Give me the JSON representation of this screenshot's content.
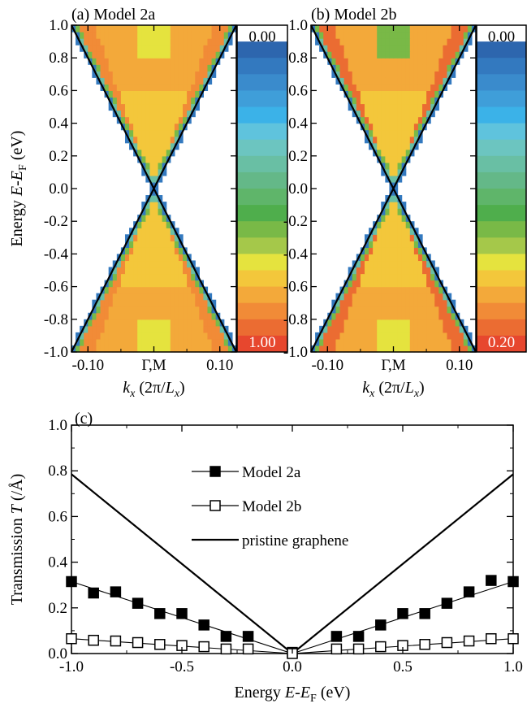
{
  "chart_data": [
    {
      "id": "panel-a",
      "type": "heatmap",
      "panel_label": "(a) Model 2a",
      "xlabel_main": "k",
      "xlabel_sub": "x",
      "xlabel_rest_open": " (2π/",
      "xlabel_rest_L": "L",
      "xlabel_rest_sub": "x",
      "xlabel_rest_close": ")",
      "ylabel_main": "Energy ",
      "ylabel_E": "E",
      "ylabel_dash": "-",
      "ylabel_E2": "E",
      "ylabel_sub": "F",
      "ylabel_unit": " (eV)",
      "xlim": [
        -0.125,
        0.125
      ],
      "ylim": [
        -1.0,
        1.0
      ],
      "xticks": [
        {
          "value": -0.1,
          "label": "-0.10"
        },
        {
          "value": 0.0,
          "label": "Γ,M"
        },
        {
          "value": 0.1,
          "label": "0.10"
        }
      ],
      "yticks": [
        {
          "value": 1.0,
          "label": "1.0"
        },
        {
          "value": 0.8,
          "label": "0.8"
        },
        {
          "value": 0.6,
          "label": "0.6"
        },
        {
          "value": 0.4,
          "label": "0.4"
        },
        {
          "value": 0.2,
          "label": "0.2"
        },
        {
          "value": 0.0,
          "label": "0.0"
        },
        {
          "value": -0.2,
          "label": "-0.2"
        },
        {
          "value": -0.4,
          "label": "-0.4"
        },
        {
          "value": -0.6,
          "label": "-0.6"
        },
        {
          "value": -0.8,
          "label": "-0.8"
        },
        {
          "value": -1.0,
          "label": "-1.0"
        }
      ],
      "band_slope_eV_per_unit": 8.0,
      "colorbar": {
        "top_label": "0.00",
        "bottom_label": "1.00",
        "min": 0.0,
        "max": 1.0
      }
    },
    {
      "id": "panel-b",
      "type": "heatmap",
      "panel_label": "(b) Model 2b",
      "xlabel_main": "k",
      "xlabel_sub": "x",
      "xlabel_rest_open": " (2π/",
      "xlabel_rest_L": "L",
      "xlabel_rest_sub": "x",
      "xlabel_rest_close": ")",
      "xlim": [
        -0.125,
        0.125
      ],
      "ylim": [
        -1.0,
        1.0
      ],
      "xticks": [
        {
          "value": -0.1,
          "label": "-0.10"
        },
        {
          "value": 0.0,
          "label": "Γ,M"
        },
        {
          "value": 0.1,
          "label": "0.10"
        }
      ],
      "band_slope_eV_per_unit": 8.0,
      "colorbar": {
        "top_label": "0.00",
        "bottom_label": "0.20",
        "min": 0.0,
        "max": 0.2
      }
    },
    {
      "id": "panel-c",
      "type": "line",
      "panel_label": "(c)",
      "xlabel_main": "Energy ",
      "xlabel_E": "E",
      "xlabel_dash": "-",
      "xlabel_E2": "E",
      "xlabel_sub": "F",
      "xlabel_unit": " (eV)",
      "ylabel_main": "Transmission ",
      "ylabel_T": "T",
      "ylabel_unit": " (/Å)",
      "xlim": [
        -1.0,
        1.0
      ],
      "ylim": [
        0.0,
        1.0
      ],
      "xticks": [
        {
          "value": -1.0,
          "label": "-1.0"
        },
        {
          "value": -0.5,
          "label": "-0.5"
        },
        {
          "value": 0.0,
          "label": "0.0"
        },
        {
          "value": 0.5,
          "label": "0.5"
        },
        {
          "value": 1.0,
          "label": "1.0"
        }
      ],
      "yticks": [
        {
          "value": 0.0,
          "label": "0.0"
        },
        {
          "value": 0.2,
          "label": "0.2"
        },
        {
          "value": 0.4,
          "label": "0.4"
        },
        {
          "value": 0.6,
          "label": "0.6"
        },
        {
          "value": 0.8,
          "label": "0.8"
        },
        {
          "value": 1.0,
          "label": "1.0"
        }
      ],
      "legend": {
        "position": "top-center"
      },
      "series": [
        {
          "name": "Model 2a",
          "marker": "filled-square",
          "x": [
            -1.0,
            -0.9,
            -0.8,
            -0.7,
            -0.6,
            -0.5,
            -0.4,
            -0.3,
            -0.2,
            0.0,
            0.2,
            0.3,
            0.4,
            0.5,
            0.6,
            0.7,
            0.8,
            0.9,
            1.0
          ],
          "y": [
            0.315,
            0.265,
            0.27,
            0.22,
            0.175,
            0.175,
            0.125,
            0.075,
            0.075,
            0.005,
            0.075,
            0.075,
            0.125,
            0.175,
            0.175,
            0.22,
            0.27,
            0.32,
            0.315
          ]
        },
        {
          "name": "Model 2b",
          "marker": "open-square",
          "x": [
            -1.0,
            -0.9,
            -0.8,
            -0.7,
            -0.6,
            -0.5,
            -0.4,
            -0.3,
            -0.2,
            0.0,
            0.2,
            0.3,
            0.4,
            0.5,
            0.6,
            0.7,
            0.8,
            0.9,
            1.0
          ],
          "y": [
            0.065,
            0.058,
            0.055,
            0.048,
            0.04,
            0.035,
            0.03,
            0.02,
            0.02,
            0.0,
            0.02,
            0.02,
            0.03,
            0.035,
            0.04,
            0.048,
            0.055,
            0.065,
            0.065
          ]
        },
        {
          "name": "pristine graphene",
          "marker": "none",
          "x": [
            -1.0,
            0.0,
            1.0
          ],
          "y": [
            0.785,
            0.0,
            0.785
          ]
        }
      ]
    }
  ]
}
